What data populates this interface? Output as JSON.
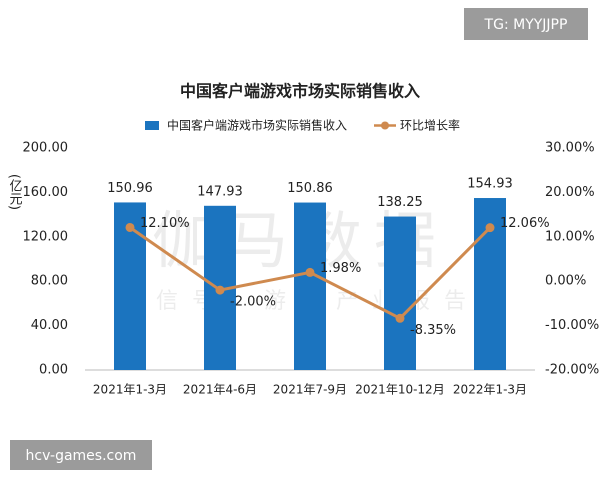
{
  "badge": "TG: MYYJJPP",
  "site": "hcv-games.com",
  "watermark": [
    "伽马数据",
    "微信号：游戏产业报告"
  ],
  "chart_data": {
    "type": "bar",
    "title": "中国客户端游戏市场实际销售收入",
    "y_label": "(亿元)",
    "categories": [
      "2021年1-3月",
      "2021年4-6月",
      "2021年7-9月",
      "2021年10-12月",
      "2022年1-3月"
    ],
    "series": [
      {
        "name": "中国客户端游戏市场实际销售收入",
        "type": "bar",
        "color": "#1b74bf",
        "values": [
          150.96,
          147.93,
          150.86,
          138.25,
          154.93
        ]
      },
      {
        "name": "环比增长率",
        "type": "line",
        "axis": "y2",
        "color": "#cf8a4f",
        "values": [
          12.1,
          -2.0,
          1.98,
          -8.35,
          12.06
        ],
        "value_labels": [
          "12.10%",
          "-2.00%",
          "1.98%",
          "-8.35%",
          "12.06%"
        ]
      }
    ],
    "ylim": [
      0,
      200
    ],
    "yticks": [
      {
        "value": 0,
        "label": "0.00"
      },
      {
        "value": 40,
        "label": "40.00"
      },
      {
        "value": 80,
        "label": "80.00"
      },
      {
        "value": 120,
        "label": "120.00"
      },
      {
        "value": 160,
        "label": "160.00"
      },
      {
        "value": 200,
        "label": "200.00"
      }
    ],
    "y2lim": [
      -20,
      30
    ],
    "y2ticks": [
      {
        "value": -20,
        "label": "-20.00%"
      },
      {
        "value": -10,
        "label": "-10.00%"
      },
      {
        "value": 0,
        "label": "0.00%"
      },
      {
        "value": 10,
        "label": "10.00%"
      },
      {
        "value": 20,
        "label": "20.00%"
      },
      {
        "value": 30,
        "label": "30.00%"
      }
    ]
  }
}
